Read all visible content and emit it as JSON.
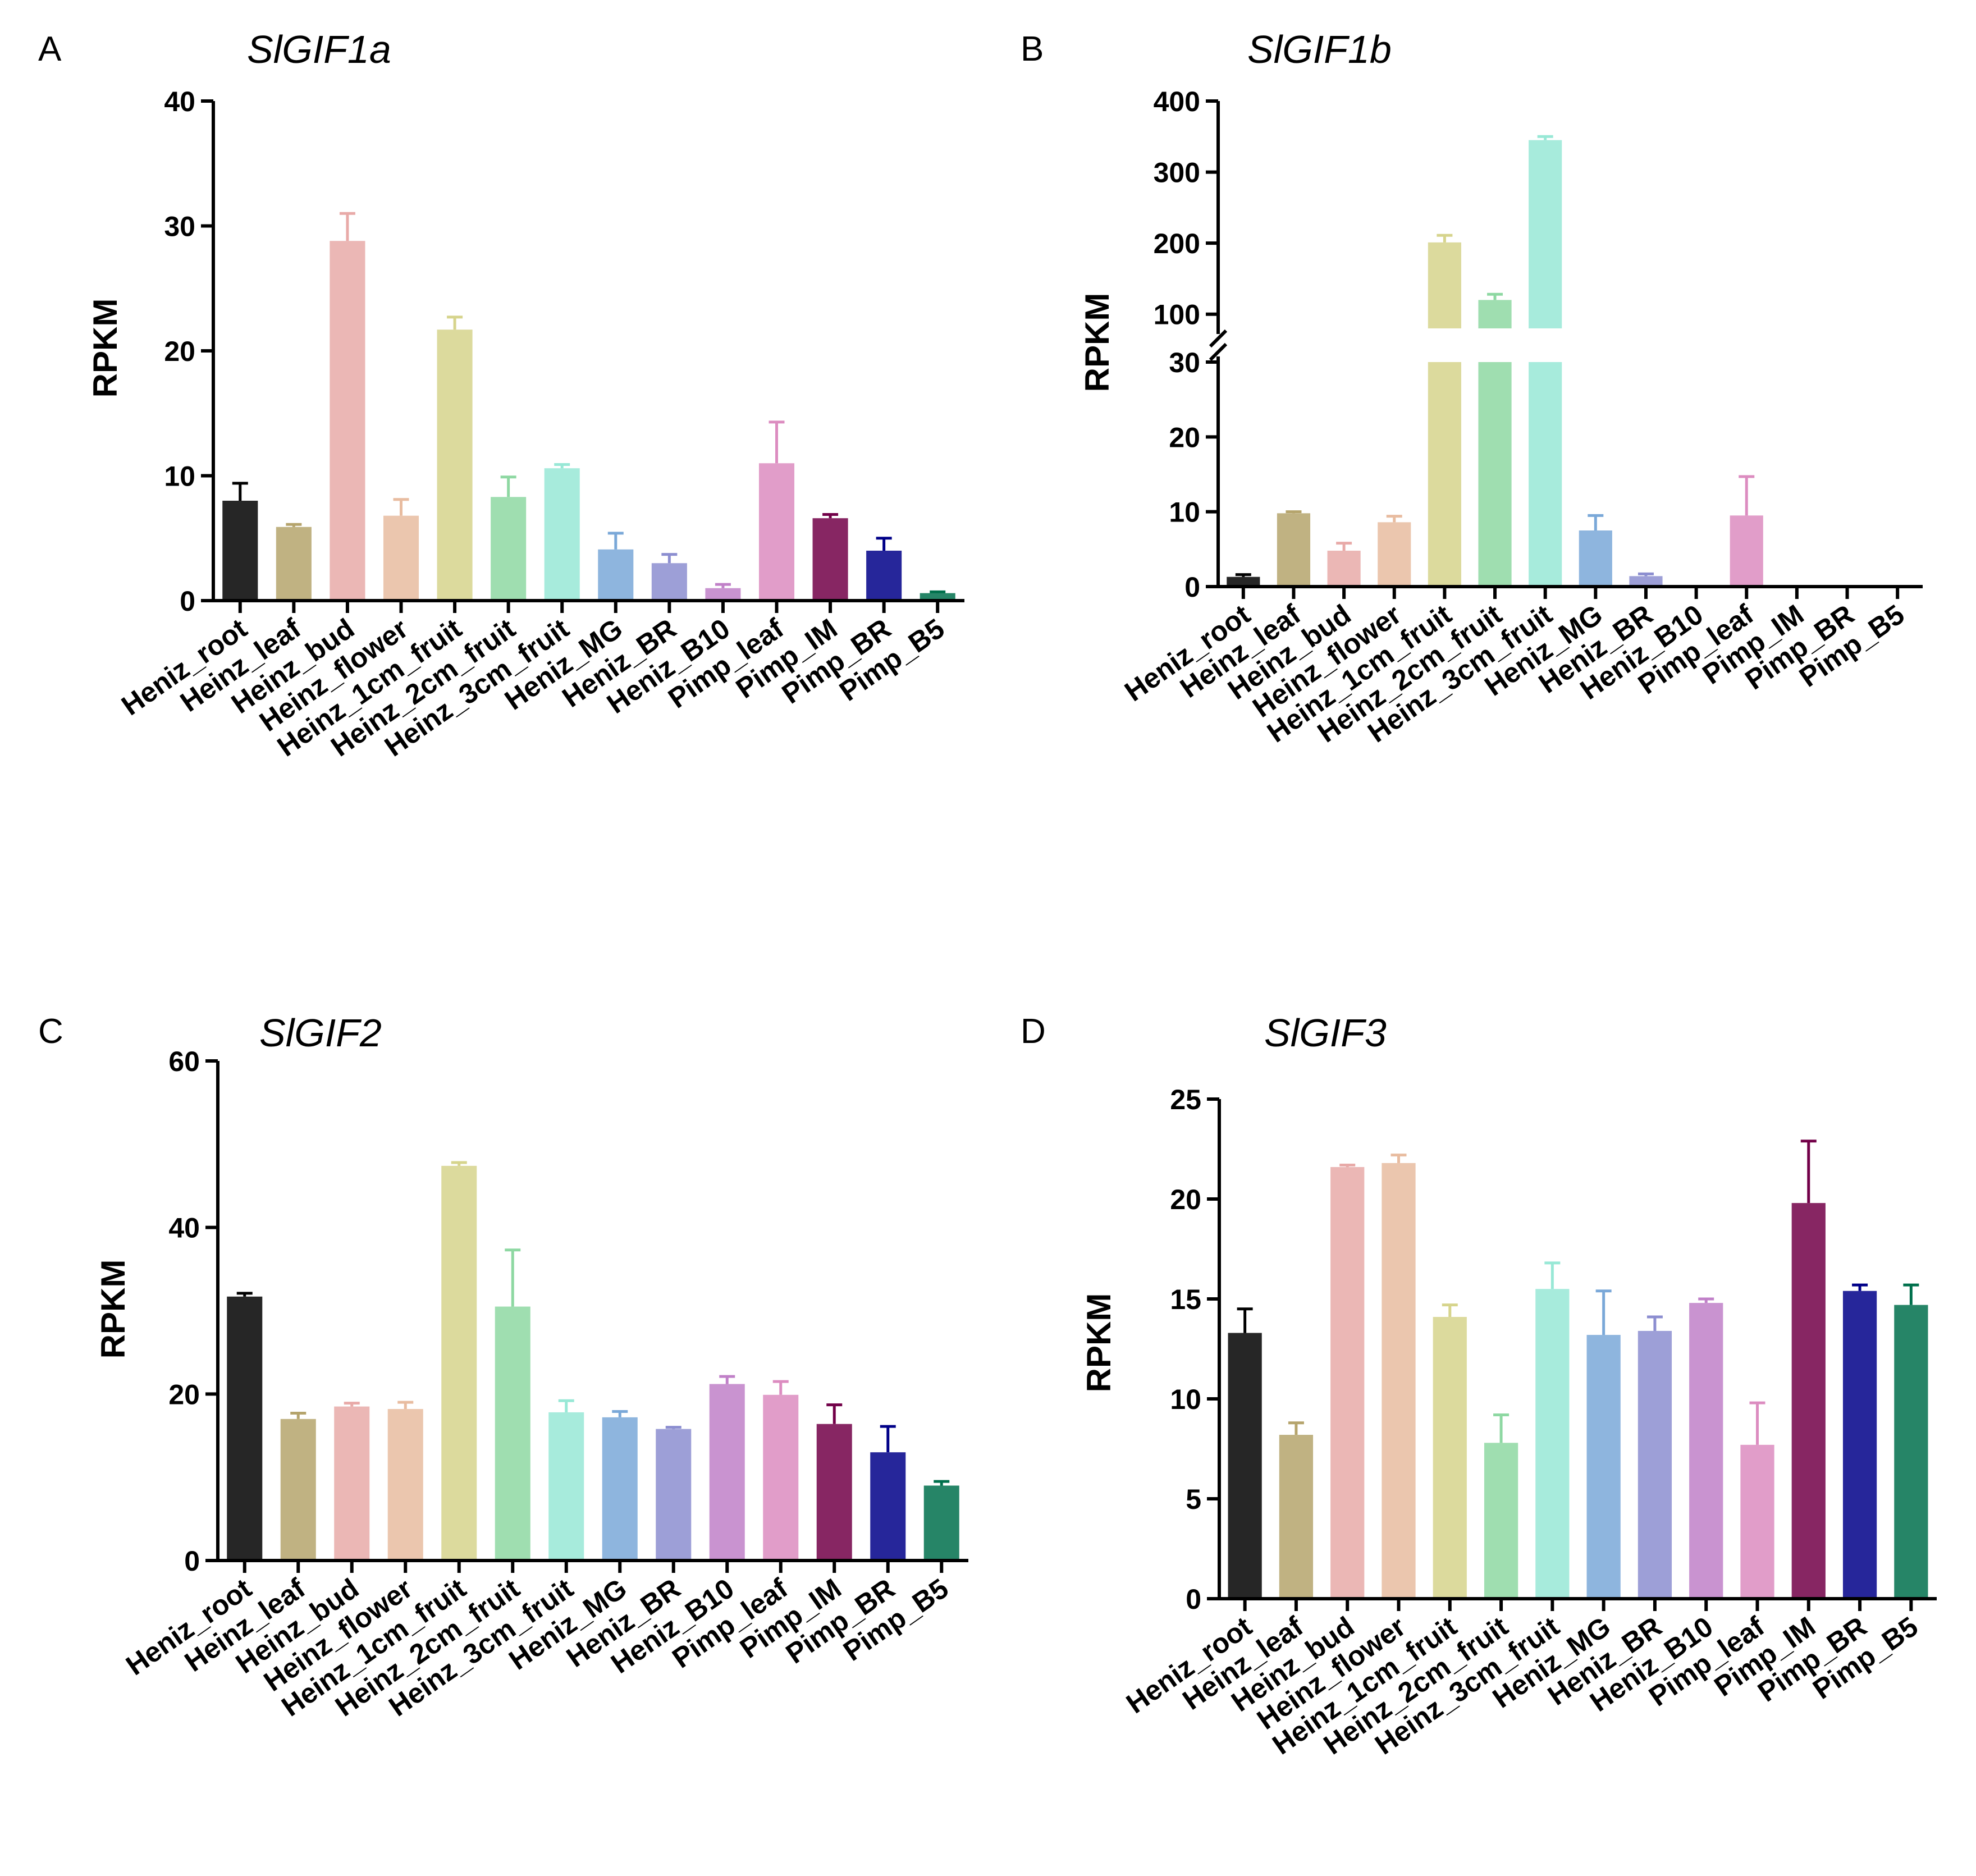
{
  "categories": [
    "Heniz_root",
    "Heinz_leaf",
    "Heinz_bud",
    "Heinz_flower",
    "Heinz_1cm_fruit",
    "Heinz_2cm_fruit",
    "Heinz_3cm_fruit",
    "Heniz_MG",
    "Heniz_BR",
    "Heniz_B10",
    "Pimp_leaf",
    "Pimp_IM",
    "Pimp_BR",
    "Pimp_B5"
  ],
  "colors": [
    "#000000",
    "#b5a46c",
    "#e8aaa8",
    "#e8bca0",
    "#d6d48c",
    "#8ed8a2",
    "#98e8d6",
    "#7aa8d8",
    "#8c8ed0",
    "#c080c8",
    "#dc8cc0",
    "#720048",
    "#000088",
    "#00704c"
  ],
  "chart_data": [
    {
      "type": "bar",
      "panel": "A",
      "title": "SlGIF1a",
      "xlabel": "",
      "ylabel": "RPKM",
      "ylim": [
        0,
        40
      ],
      "yticks": [
        "0",
        "10",
        "20",
        "30",
        "40"
      ],
      "values": [
        8.0,
        5.9,
        28.8,
        6.8,
        21.7,
        8.3,
        10.6,
        4.1,
        3.0,
        1.0,
        11.0,
        6.6,
        4.0,
        0.6
      ],
      "errors": [
        1.4,
        0.2,
        2.2,
        1.3,
        1.0,
        1.6,
        0.3,
        1.3,
        0.7,
        0.3,
        3.3,
        0.3,
        1.0,
        0.1
      ]
    },
    {
      "type": "bar",
      "panel": "B",
      "title": "SlGIF1b",
      "xlabel": "",
      "ylabel": "RPKM",
      "ylim": [
        0,
        400
      ],
      "axis_break": [
        30,
        80
      ],
      "yticks": [
        "0",
        "10",
        "20",
        "30",
        "100",
        "200",
        "300",
        "400"
      ],
      "values": [
        1.3,
        9.8,
        4.8,
        8.6,
        201,
        120,
        345,
        7.5,
        1.4,
        0,
        9.5,
        0,
        0,
        0
      ],
      "errors": [
        0.3,
        0.2,
        1.0,
        0.8,
        10,
        8,
        5,
        2.0,
        0.3,
        0,
        5.2,
        0,
        0,
        0
      ]
    },
    {
      "type": "bar",
      "panel": "C",
      "title": "SlGIF2",
      "xlabel": "",
      "ylabel": "RPKM",
      "ylim": [
        0,
        60
      ],
      "yticks": [
        "0",
        "20",
        "40",
        "60"
      ],
      "values": [
        31.7,
        17.0,
        18.5,
        18.2,
        47.4,
        30.5,
        17.8,
        17.2,
        15.8,
        21.2,
        19.9,
        16.4,
        13.0,
        9.0
      ],
      "errors": [
        0.4,
        0.7,
        0.4,
        0.8,
        0.4,
        6.8,
        1.4,
        0.7,
        0.2,
        0.9,
        1.6,
        2.3,
        3.1,
        0.5
      ]
    },
    {
      "type": "bar",
      "panel": "D",
      "title": "SlGIF3",
      "xlabel": "",
      "ylabel": "RPKM",
      "ylim": [
        0,
        25
      ],
      "yticks": [
        "0",
        "5",
        "10",
        "15",
        "20",
        "25"
      ],
      "values": [
        13.3,
        8.2,
        21.6,
        21.8,
        14.1,
        7.8,
        15.5,
        13.2,
        13.4,
        14.8,
        7.7,
        19.8,
        15.4,
        14.7
      ],
      "errors": [
        1.2,
        0.6,
        0.1,
        0.4,
        0.6,
        1.4,
        1.3,
        2.2,
        0.7,
        0.2,
        2.1,
        3.1,
        0.3,
        1.0
      ]
    }
  ]
}
